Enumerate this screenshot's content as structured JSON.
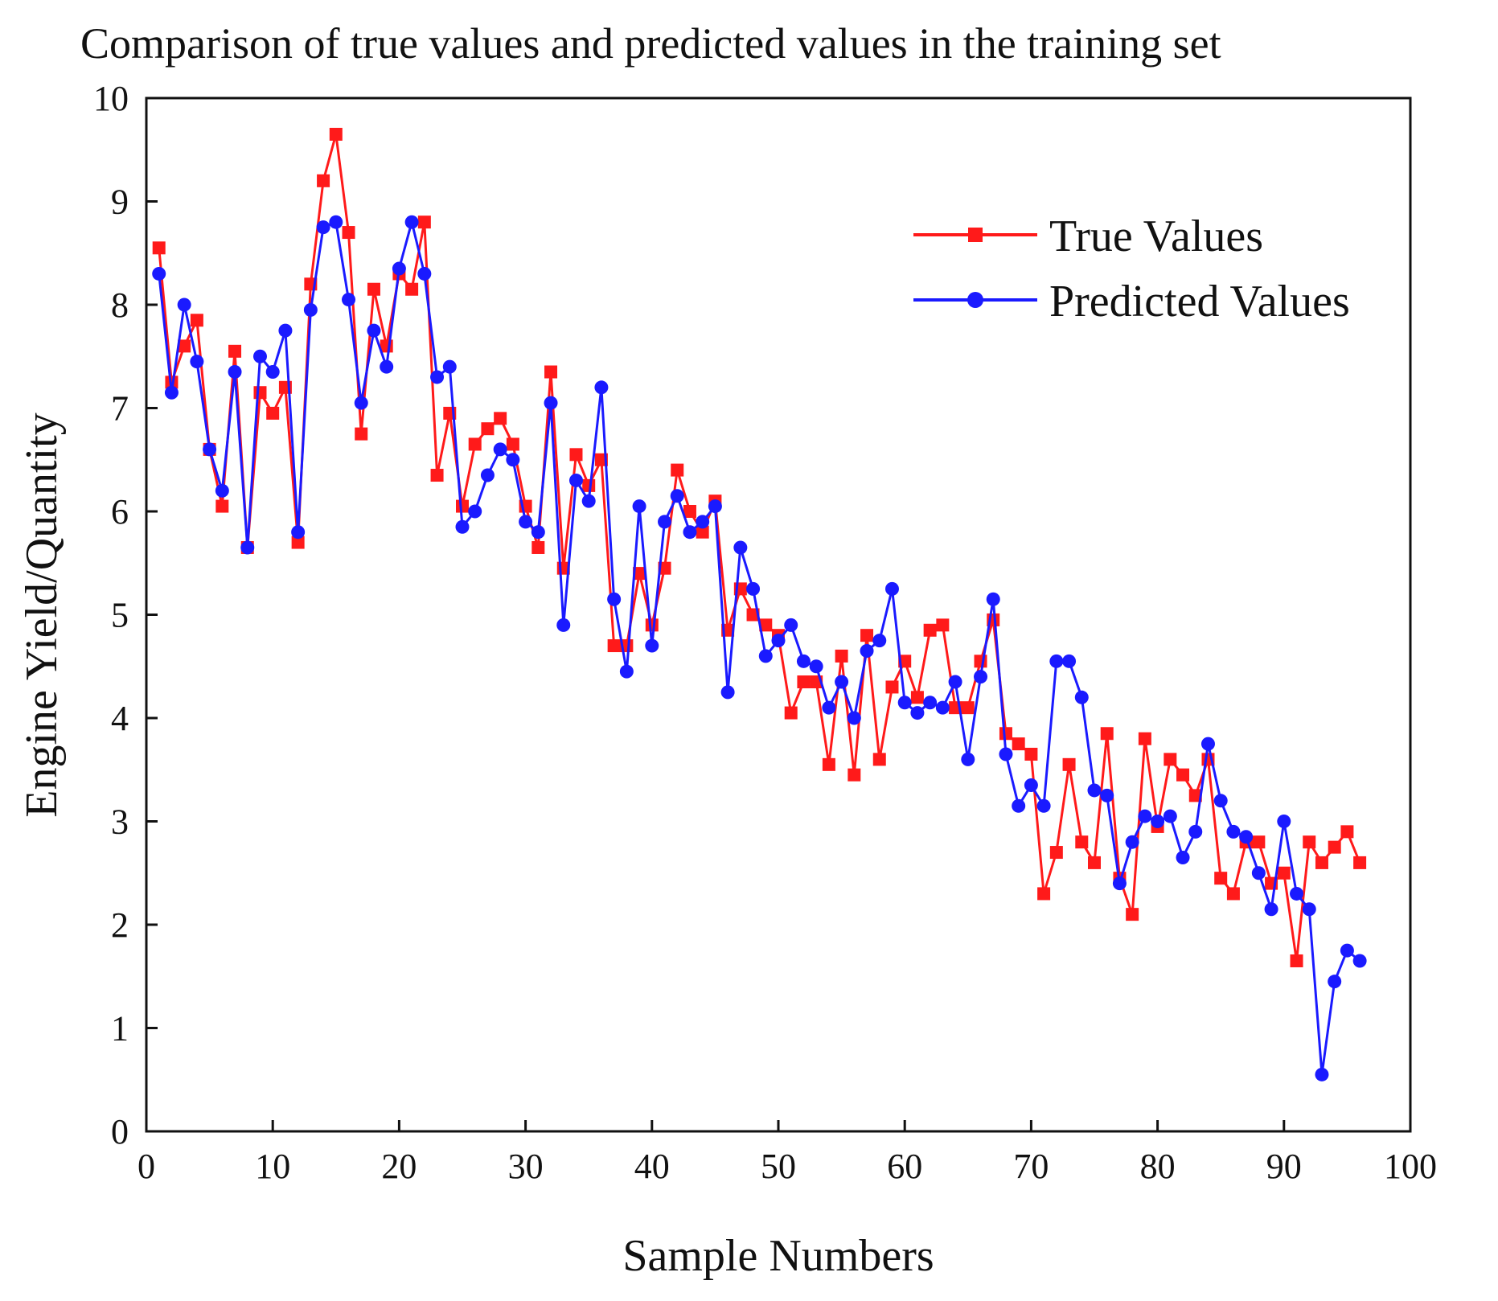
{
  "chart_data": {
    "type": "line",
    "title": "Comparison of true values and predicted values in the training set",
    "xlabel": "Sample Numbers",
    "ylabel": "Engine Yield/Quantity",
    "xlim": [
      0,
      100
    ],
    "ylim": [
      0,
      10
    ],
    "xticks": [
      0,
      10,
      20,
      30,
      40,
      50,
      60,
      70,
      80,
      90,
      100
    ],
    "yticks": [
      0,
      1,
      2,
      3,
      4,
      5,
      6,
      7,
      8,
      9,
      10
    ],
    "grid": false,
    "legend_position": "top-right",
    "x": [
      1,
      2,
      3,
      4,
      5,
      6,
      7,
      8,
      9,
      10,
      11,
      12,
      13,
      14,
      15,
      16,
      17,
      18,
      19,
      20,
      21,
      22,
      23,
      24,
      25,
      26,
      27,
      28,
      29,
      30,
      31,
      32,
      33,
      34,
      35,
      36,
      37,
      38,
      39,
      40,
      41,
      42,
      43,
      44,
      45,
      46,
      47,
      48,
      49,
      50,
      51,
      52,
      53,
      54,
      55,
      56,
      57,
      58,
      59,
      60,
      61,
      62,
      63,
      64,
      65,
      66,
      67,
      68,
      69,
      70,
      71,
      72,
      73,
      74,
      75,
      76,
      77,
      78,
      79,
      80,
      81,
      82,
      83,
      84,
      85,
      86,
      87,
      88,
      89,
      90,
      91,
      92,
      93,
      94,
      95,
      96
    ],
    "series": [
      {
        "name": "True Values",
        "color": "#ff1a1a",
        "marker": "square",
        "values": [
          8.55,
          7.25,
          7.6,
          7.85,
          6.6,
          6.05,
          7.55,
          5.65,
          7.15,
          6.95,
          7.2,
          5.7,
          8.2,
          9.2,
          9.65,
          8.7,
          6.75,
          8.15,
          7.6,
          8.3,
          8.15,
          8.8,
          6.35,
          6.95,
          6.05,
          6.65,
          6.8,
          6.9,
          6.65,
          6.05,
          5.65,
          7.35,
          5.45,
          6.55,
          6.25,
          6.5,
          4.7,
          4.7,
          5.4,
          4.9,
          5.45,
          6.4,
          6.0,
          5.8,
          6.1,
          4.85,
          5.25,
          5.0,
          4.9,
          4.8,
          4.05,
          4.35,
          4.35,
          3.55,
          4.6,
          3.45,
          4.8,
          3.6,
          4.3,
          4.55,
          4.2,
          4.85,
          4.9,
          4.1,
          4.1,
          4.55,
          4.95,
          3.85,
          3.75,
          3.65,
          2.3,
          2.7,
          3.55,
          2.8,
          2.6,
          3.85,
          2.45,
          2.1,
          3.8,
          2.95,
          3.6,
          3.45,
          3.25,
          3.6,
          2.45,
          2.3,
          2.8,
          2.8,
          2.4,
          2.5,
          1.65,
          2.8,
          2.6,
          2.75,
          2.9,
          2.6
        ]
      },
      {
        "name": "Predicted Values",
        "color": "#1a1aff",
        "marker": "circle",
        "values": [
          8.3,
          7.15,
          8.0,
          7.45,
          6.6,
          6.2,
          7.35,
          5.65,
          7.5,
          7.35,
          7.75,
          5.8,
          7.95,
          8.75,
          8.8,
          8.05,
          7.05,
          7.75,
          7.4,
          8.35,
          8.8,
          8.3,
          7.3,
          7.4,
          5.85,
          6.0,
          6.35,
          6.6,
          6.5,
          5.9,
          5.8,
          7.05,
          4.9,
          6.3,
          6.1,
          7.2,
          5.15,
          4.45,
          6.05,
          4.7,
          5.9,
          6.15,
          5.8,
          5.9,
          6.05,
          4.25,
          5.65,
          5.25,
          4.6,
          4.75,
          4.9,
          4.55,
          4.5,
          4.1,
          4.35,
          4.0,
          4.65,
          4.75,
          5.25,
          4.15,
          4.05,
          4.15,
          4.1,
          4.35,
          3.6,
          4.4,
          5.15,
          3.65,
          3.15,
          3.35,
          3.15,
          4.55,
          4.55,
          4.2,
          3.3,
          3.25,
          2.4,
          2.8,
          3.05,
          3.0,
          3.05,
          2.65,
          2.9,
          3.75,
          3.2,
          2.9,
          2.85,
          2.5,
          2.15,
          3.0,
          2.3,
          2.15,
          0.55,
          1.45,
          1.75,
          1.65
        ]
      }
    ]
  }
}
